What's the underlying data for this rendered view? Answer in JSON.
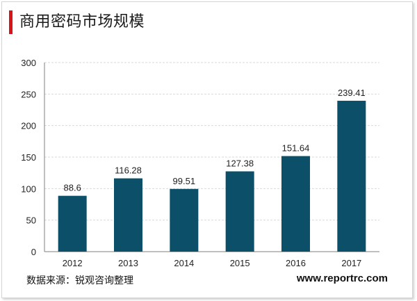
{
  "header": {
    "title": "商用密码市场规模"
  },
  "footer": {
    "source": "数据来源：锐观咨询整理",
    "site": "www.reportrc.com"
  },
  "colors": {
    "bar": "#0b5068",
    "accent": "#d7141a",
    "grid": "#d9d9d9"
  },
  "chart_data": {
    "type": "bar",
    "title": "商用密码市场规模",
    "categories": [
      "2012",
      "2013",
      "2014",
      "2015",
      "2016",
      "2017"
    ],
    "values": [
      88.6,
      116.28,
      99.51,
      127.38,
      151.64,
      239.41
    ],
    "value_labels": [
      "88.6",
      "116.28",
      "99.51",
      "127.38",
      "151.64",
      "239.41"
    ],
    "xlabel": "",
    "ylabel": "",
    "ylim": [
      0,
      300
    ],
    "yticks": [
      "0",
      "50",
      "100",
      "150",
      "200",
      "250",
      "300"
    ],
    "grid": true
  }
}
